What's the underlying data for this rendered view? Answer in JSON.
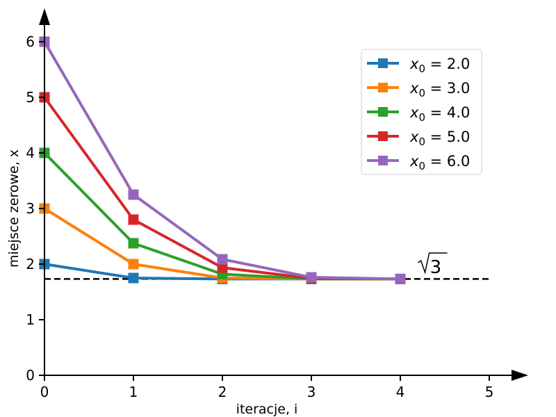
{
  "chart_data": {
    "type": "line",
    "title": "",
    "xlabel": "iteracje, i",
    "ylabel": "miejsce zerowe, x",
    "xlim": [
      0,
      5.4
    ],
    "ylim": [
      0,
      6.6
    ],
    "xticks": [
      0,
      1,
      2,
      3,
      4,
      5
    ],
    "yticks": [
      0,
      1,
      2,
      3,
      4,
      5,
      6
    ],
    "grid": false,
    "legend_position": "top-right",
    "x": [
      0,
      1,
      2,
      3,
      4
    ],
    "series": [
      {
        "name": "x0 = 2.0",
        "label_var": "x",
        "label_sub": "0",
        "label_val": " = 2.0",
        "color": "#1f77b4",
        "values": [
          2.0,
          1.75,
          1.7321,
          1.7321,
          1.7321
        ]
      },
      {
        "name": "x0 = 3.0",
        "label_var": "x",
        "label_sub": "0",
        "label_val": " = 3.0",
        "color": "#ff7f0e",
        "values": [
          3.0,
          2.0,
          1.75,
          1.7321,
          1.7321
        ]
      },
      {
        "name": "x0 = 4.0",
        "label_var": "x",
        "label_sub": "0",
        "label_val": " = 4.0",
        "color": "#2ca02c",
        "values": [
          4.0,
          2.375,
          1.8191,
          1.7341,
          1.7321
        ]
      },
      {
        "name": "x0 = 5.0",
        "label_var": "x",
        "label_sub": "0",
        "label_val": " = 5.0",
        "color": "#d62728",
        "values": [
          5.0,
          2.8,
          1.9357,
          1.7428,
          1.7321
        ]
      },
      {
        "name": "x0 = 6.0",
        "label_var": "x",
        "label_sub": "0",
        "label_val": " = 6.0",
        "color": "#9467bd",
        "values": [
          6.0,
          3.25,
          2.0865,
          1.7622,
          1.7323
        ]
      }
    ],
    "reference_line": {
      "y": 1.7320508,
      "x_range": [
        0,
        5
      ],
      "style": "dashed",
      "color": "#000000"
    },
    "annotation": {
      "text": "√3",
      "radicand": "3",
      "x": 4.2,
      "y": 1.9
    }
  }
}
